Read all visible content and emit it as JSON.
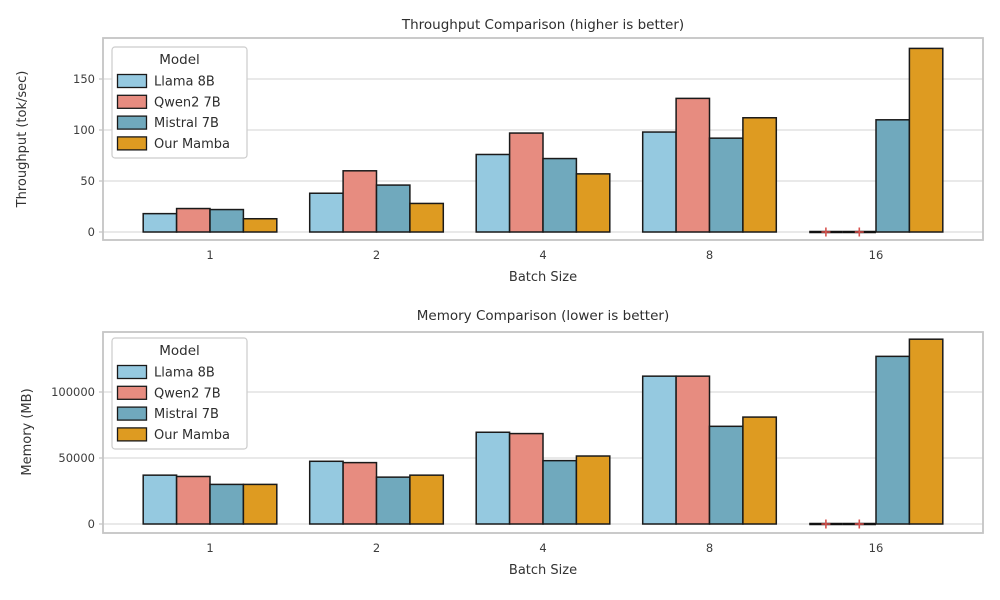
{
  "figure": {
    "background": "#ffffff"
  },
  "styles": {
    "bar_edge": "#1a1a1a",
    "grid_color": "#dcdcdc",
    "axes_border": "#c5c5c5",
    "tick_text": "#3d3d3d",
    "title_text": "#2e2e2e",
    "failed_marker_color": "#d9534f",
    "zero_bar_color": "#111111",
    "legend_border": "#cccccc",
    "legend_bg": "#ffffff"
  },
  "legend": {
    "title": "Model",
    "entries": [
      "Llama 8B",
      "Qwen2 7B",
      "Mistral 7B",
      "Our Mamba"
    ]
  },
  "chart_data": [
    {
      "type": "bar",
      "title": "Throughput Comparison (higher is better)",
      "xlabel": "Batch Size",
      "ylabel": "Throughput (tok/sec)",
      "categories": [
        "1",
        "2",
        "4",
        "8",
        "16"
      ],
      "yticks": [
        0,
        50,
        100,
        150
      ],
      "ylim": [
        -8,
        190
      ],
      "grid": true,
      "legend_title": "Model",
      "legend_position": "upper-left",
      "zero_marker": "red-plus",
      "series": [
        {
          "name": "Llama 8B",
          "color": "#95c9e0",
          "values": [
            18,
            38,
            76,
            98,
            0
          ]
        },
        {
          "name": "Qwen2 7B",
          "color": "#e78c80",
          "values": [
            23,
            60,
            97,
            131,
            0
          ]
        },
        {
          "name": "Mistral 7B",
          "color": "#70a9bd",
          "values": [
            22,
            46,
            72,
            92,
            110
          ]
        },
        {
          "name": "Our Mamba",
          "color": "#de9b21",
          "values": [
            13,
            28,
            57,
            112,
            180
          ]
        }
      ]
    },
    {
      "type": "bar",
      "title": "Memory Comparison (lower is better)",
      "xlabel": "Batch Size",
      "ylabel": "Memory (MB)",
      "categories": [
        "1",
        "2",
        "4",
        "8",
        "16"
      ],
      "yticks": [
        0,
        50000,
        100000
      ],
      "ylim": [
        -6800,
        145500
      ],
      "grid": true,
      "legend_title": "Model",
      "legend_position": "upper-left",
      "zero_marker": "red-plus",
      "series": [
        {
          "name": "Llama 8B",
          "color": "#95c9e0",
          "values": [
            37000,
            47500,
            69500,
            112000,
            0
          ]
        },
        {
          "name": "Qwen2 7B",
          "color": "#e78c80",
          "values": [
            36000,
            46500,
            68500,
            112000,
            0
          ]
        },
        {
          "name": "Mistral 7B",
          "color": "#70a9bd",
          "values": [
            30000,
            35500,
            48000,
            74000,
            127000
          ]
        },
        {
          "name": "Our Mamba",
          "color": "#de9b21",
          "values": [
            30000,
            37000,
            51500,
            81000,
            140000
          ]
        }
      ]
    }
  ]
}
